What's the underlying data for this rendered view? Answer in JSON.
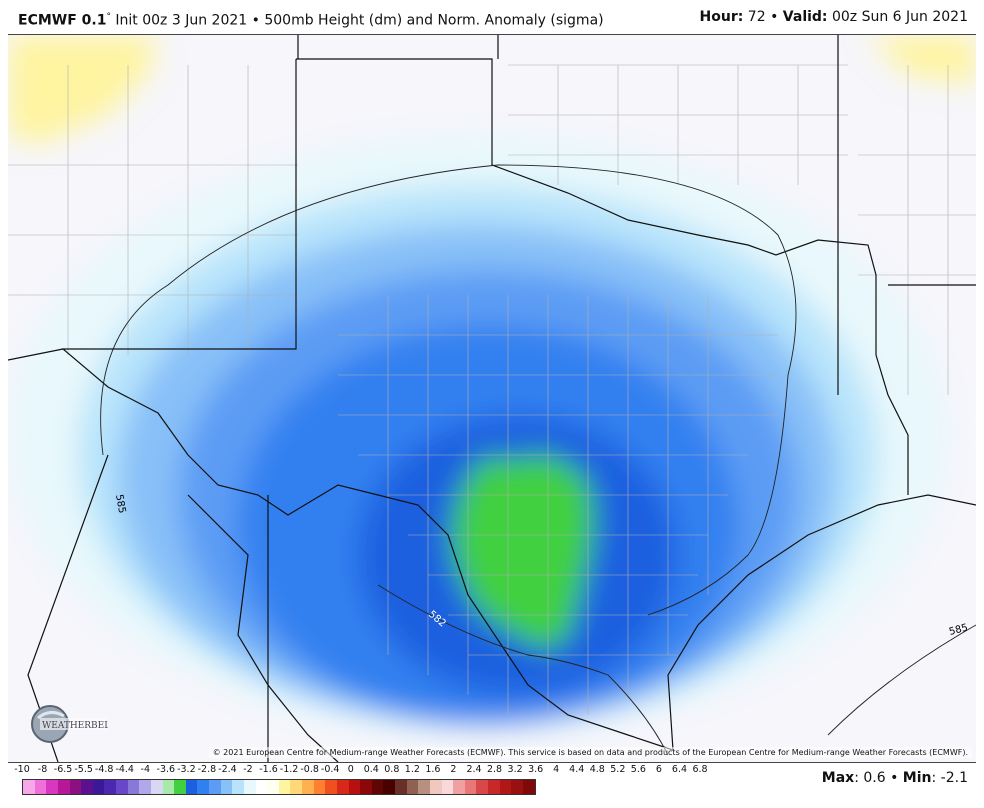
{
  "header": {
    "model": "ECMWF 0.1",
    "init_text": "Init 00z 3 Jun 2021",
    "separator": "•",
    "product": "500mb Height (dm) and Norm. Anomaly (sigma)",
    "hour_label": "Hour:",
    "hour_value": "72",
    "valid_label": "Valid:",
    "valid_value": "00z Sun 6 Jun 2021"
  },
  "map": {
    "contour_labels": [
      "585",
      "582",
      "585"
    ],
    "copyright": "© 2021 European Centre for Medium-range Weather Forecasts (ECMWF). This service is based on data and products of the European Centre for Medium-range Weather Forecasts (ECMWF).",
    "logo_text": "WEATHERBELL"
  },
  "legend": {
    "labels": [
      "-10",
      "-8",
      "-6.5",
      "-5.5",
      "-4.8",
      "-4.4",
      "-4",
      "-3.6",
      "-3.2",
      "-2.8",
      "-2.4",
      "-2",
      "-1.6",
      "-1.2",
      "-0.8",
      "-0.4",
      "0",
      "0.4",
      "0.8",
      "1.2",
      "1.6",
      "2",
      "2.4",
      "2.8",
      "3.2",
      "3.6",
      "4",
      "4.4",
      "4.8",
      "5.2",
      "5.6",
      "6",
      "6.4",
      "6.8"
    ],
    "colors": [
      "#f7a8e8",
      "#ee70d8",
      "#d838c0",
      "#b81898",
      "#8c1080",
      "#5c1090",
      "#3c1898",
      "#4c28b0",
      "#6848c8",
      "#8878d8",
      "#b0a8e8",
      "#d8d8f4",
      "#a8e8a8",
      "#40d040",
      "#1c60e0",
      "#3080f0",
      "#5c9cf4",
      "#88c0f8",
      "#b8e4fb",
      "#e8f8fc",
      "#ffffff",
      "#fffff0",
      "#fff4a0",
      "#ffd878",
      "#ffb050",
      "#ff8030",
      "#f05020",
      "#d82818",
      "#b81010",
      "#8c0808",
      "#600404",
      "#480000",
      "#683028",
      "#906050",
      "#b89080",
      "#f0c8c0",
      "#f8d8d8",
      "#f0a0a0",
      "#e87878",
      "#d84848",
      "#c82828",
      "#b01818",
      "#981010",
      "#800808"
    ],
    "max_label": "Max",
    "max_value": "0.6",
    "min_label": "Min",
    "min_value": "-2.1"
  }
}
